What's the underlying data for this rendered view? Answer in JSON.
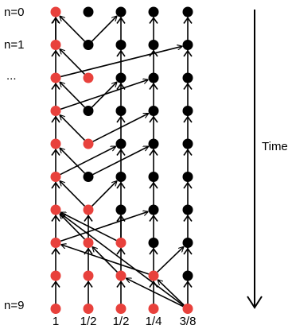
{
  "row_labels": [
    "n=0",
    "n=1",
    "...",
    "n=9"
  ],
  "column_labels": [
    "1",
    "1/2",
    "1/2",
    "1/4",
    "3/8"
  ],
  "time_label": "Time",
  "colors": {
    "red": "#e8413c",
    "black": "#000000"
  },
  "nodes": [
    {
      "col": 0,
      "row": 0,
      "color": "red"
    },
    {
      "col": 1,
      "row": 0,
      "color": "black"
    },
    {
      "col": 2,
      "row": 0,
      "color": "black"
    },
    {
      "col": 3,
      "row": 0,
      "color": "black"
    },
    {
      "col": 4,
      "row": 0,
      "color": "black"
    },
    {
      "col": 0,
      "row": 1,
      "color": "red"
    },
    {
      "col": 1,
      "row": 1,
      "color": "black"
    },
    {
      "col": 2,
      "row": 1,
      "color": "black"
    },
    {
      "col": 3,
      "row": 1,
      "color": "black"
    },
    {
      "col": 4,
      "row": 1,
      "color": "black"
    },
    {
      "col": 0,
      "row": 2,
      "color": "red"
    },
    {
      "col": 1,
      "row": 2,
      "color": "red"
    },
    {
      "col": 2,
      "row": 2,
      "color": "black"
    },
    {
      "col": 3,
      "row": 2,
      "color": "black"
    },
    {
      "col": 4,
      "row": 2,
      "color": "black"
    },
    {
      "col": 0,
      "row": 3,
      "color": "red"
    },
    {
      "col": 1,
      "row": 3,
      "color": "black"
    },
    {
      "col": 2,
      "row": 3,
      "color": "black"
    },
    {
      "col": 3,
      "row": 3,
      "color": "black"
    },
    {
      "col": 4,
      "row": 3,
      "color": "black"
    },
    {
      "col": 0,
      "row": 4,
      "color": "red"
    },
    {
      "col": 1,
      "row": 4,
      "color": "red"
    },
    {
      "col": 2,
      "row": 4,
      "color": "black"
    },
    {
      "col": 3,
      "row": 4,
      "color": "black"
    },
    {
      "col": 4,
      "row": 4,
      "color": "black"
    },
    {
      "col": 0,
      "row": 5,
      "color": "red"
    },
    {
      "col": 1,
      "row": 5,
      "color": "black"
    },
    {
      "col": 2,
      "row": 5,
      "color": "black"
    },
    {
      "col": 3,
      "row": 5,
      "color": "black"
    },
    {
      "col": 4,
      "row": 5,
      "color": "black"
    },
    {
      "col": 0,
      "row": 6,
      "color": "red"
    },
    {
      "col": 1,
      "row": 6,
      "color": "red"
    },
    {
      "col": 2,
      "row": 6,
      "color": "black"
    },
    {
      "col": 3,
      "row": 6,
      "color": "black"
    },
    {
      "col": 4,
      "row": 6,
      "color": "black"
    },
    {
      "col": 0,
      "row": 7,
      "color": "red"
    },
    {
      "col": 1,
      "row": 7,
      "color": "red"
    },
    {
      "col": 2,
      "row": 7,
      "color": "red"
    },
    {
      "col": 3,
      "row": 7,
      "color": "black"
    },
    {
      "col": 4,
      "row": 7,
      "color": "black"
    },
    {
      "col": 0,
      "row": 8,
      "color": "red"
    },
    {
      "col": 1,
      "row": 8,
      "color": "red"
    },
    {
      "col": 2,
      "row": 8,
      "color": "red"
    },
    {
      "col": 3,
      "row": 8,
      "color": "red"
    },
    {
      "col": 4,
      "row": 8,
      "color": "black"
    },
    {
      "col": 0,
      "row": 9,
      "color": "red"
    },
    {
      "col": 1,
      "row": 9,
      "color": "red"
    },
    {
      "col": 2,
      "row": 9,
      "color": "red"
    },
    {
      "col": 3,
      "row": 9,
      "color": "red"
    },
    {
      "col": 4,
      "row": 9,
      "color": "red"
    }
  ],
  "vertical_arrows": [
    {
      "col": 0,
      "from_row": 9,
      "to_row": 0
    },
    {
      "col": 1,
      "from_row": 9,
      "to_row": 6
    },
    {
      "col": 2,
      "from_row": 9,
      "to_row": 0
    },
    {
      "col": 3,
      "from_row": 9,
      "to_row": 0
    },
    {
      "col": 4,
      "from_row": 9,
      "to_row": 0
    }
  ],
  "edges": [
    {
      "from": [
        0,
        1
      ],
      "to": [
        0,
        0
      ]
    },
    {
      "from": [
        1,
        1
      ],
      "to": [
        0,
        0
      ]
    },
    {
      "from": [
        1,
        1
      ],
      "to": [
        2,
        0
      ]
    },
    {
      "from": [
        0,
        2
      ],
      "to": [
        4,
        1
      ]
    },
    {
      "from": [
        1,
        2
      ],
      "to": [
        0,
        1
      ]
    },
    {
      "from": [
        0,
        3
      ],
      "to": [
        3,
        2
      ]
    },
    {
      "from": [
        1,
        3
      ],
      "to": [
        0,
        2
      ]
    },
    {
      "from": [
        1,
        3
      ],
      "to": [
        2,
        2
      ]
    },
    {
      "from": [
        1,
        4
      ],
      "to": [
        0,
        3
      ]
    },
    {
      "from": [
        1,
        4
      ],
      "to": [
        3,
        3
      ]
    },
    {
      "from": [
        0,
        5
      ],
      "to": [
        2,
        4
      ]
    },
    {
      "from": [
        1,
        5
      ],
      "to": [
        0,
        4
      ]
    },
    {
      "from": [
        1,
        5
      ],
      "to": [
        3,
        4
      ]
    },
    {
      "from": [
        1,
        6
      ],
      "to": [
        0,
        5
      ]
    },
    {
      "from": [
        1,
        6
      ],
      "to": [
        2,
        5
      ]
    },
    {
      "from": [
        0,
        7
      ],
      "to": [
        3,
        6
      ]
    },
    {
      "from": [
        2,
        7
      ],
      "to": [
        0,
        6
      ]
    },
    {
      "from": [
        2,
        7
      ],
      "to": [
        2,
        6
      ]
    },
    {
      "from": [
        1,
        7
      ],
      "to": [
        0,
        6
      ]
    },
    {
      "from": [
        3,
        8
      ],
      "to": [
        0,
        7
      ]
    },
    {
      "from": [
        3,
        8
      ],
      "to": [
        4,
        7
      ]
    },
    {
      "from": [
        2,
        8
      ],
      "to": [
        1,
        7
      ]
    },
    {
      "from": [
        4,
        9
      ],
      "to": [
        0,
        6
      ]
    },
    {
      "from": [
        4,
        9
      ],
      "to": [
        2,
        8
      ]
    },
    {
      "from": [
        4,
        9
      ],
      "to": [
        3,
        8
      ]
    }
  ]
}
